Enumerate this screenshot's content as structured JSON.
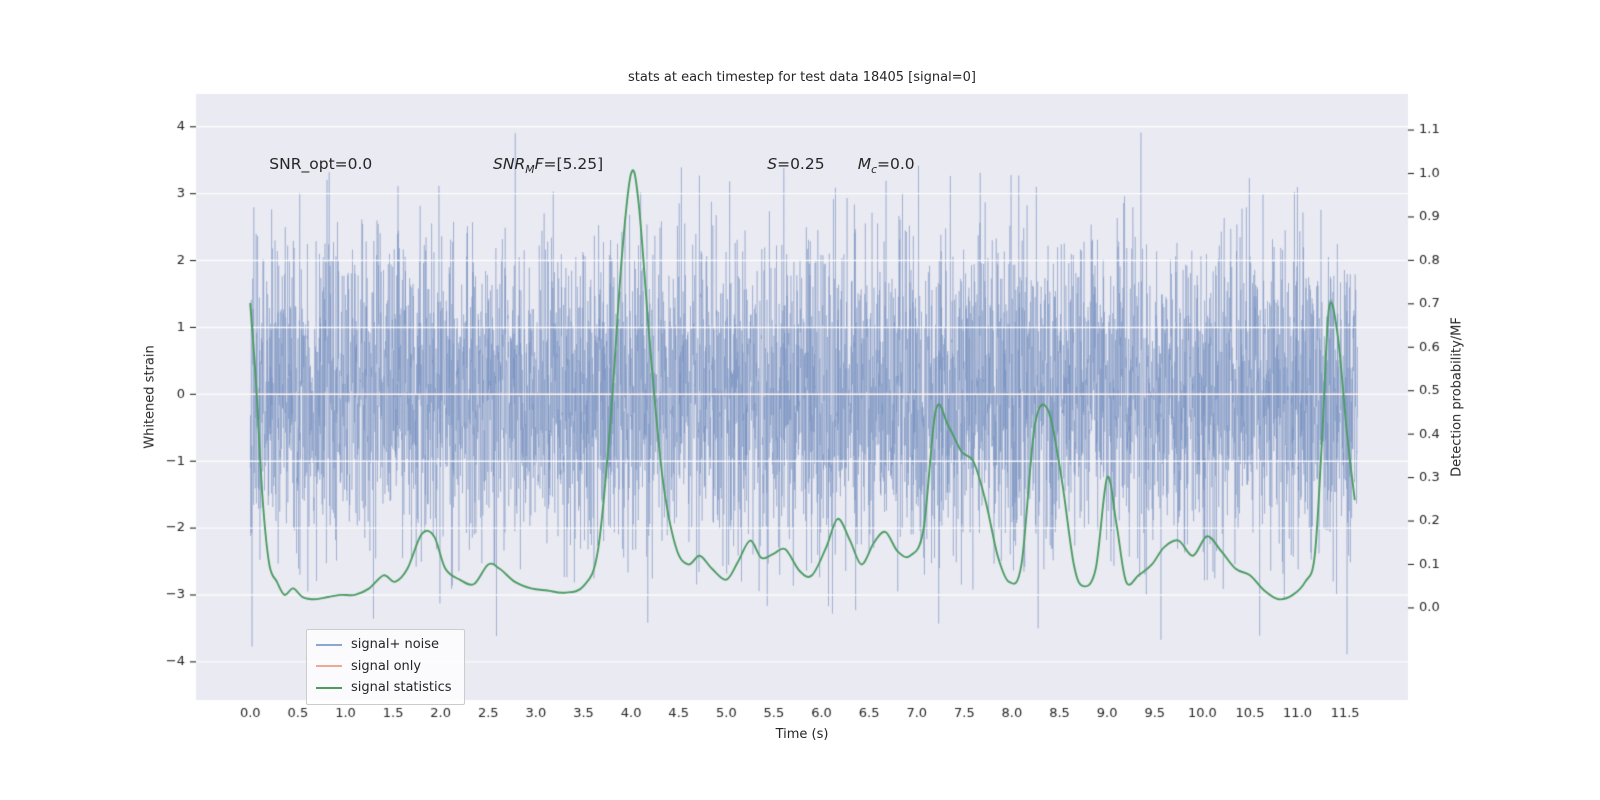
{
  "figure": {
    "background": "#ffffff"
  },
  "colors": {
    "axes_bg": "#eaeaf2",
    "grid": "#ffffff",
    "text": "#262626",
    "noise": "#6c8abd",
    "signal_only": "#edaa93",
    "signal_stats": "#4c9c64"
  },
  "legend": {
    "items": [
      {
        "label": "signal+ noise",
        "color": "#8ba6cf"
      },
      {
        "label": "signal only",
        "color": "#edaa93"
      },
      {
        "label": "signal statistics",
        "color": "#4c9c64"
      }
    ]
  },
  "chart_data": {
    "type": "line",
    "title": "stats at each timestep for test data 18405 [signal=0]",
    "xlabel": "Time (s)",
    "ylabel_left": "Whitened strain",
    "ylabel_right": "Detection probability/MF",
    "grid": "horizontal",
    "legend_position": "lower left",
    "xlim": [
      -0.57,
      12.16
    ],
    "ylim_left": [
      -4.57,
      4.49
    ],
    "ylim_right": [
      -0.212,
      1.183
    ],
    "x_ticks": {
      "values": [
        0,
        0.5,
        1,
        1.5,
        2,
        2.5,
        3,
        3.5,
        4,
        4.5,
        5,
        5.5,
        6,
        6.5,
        7,
        7.5,
        8,
        8.5,
        9,
        9.5,
        10,
        10.5,
        11,
        11.5
      ],
      "labels": [
        "0.0",
        "0.5",
        "1.0",
        "1.5",
        "2.0",
        "2.5",
        "3.0",
        "3.5",
        "4.0",
        "4.5",
        "5.0",
        "5.5",
        "6.0",
        "6.5",
        "7.0",
        "7.5",
        "8.0",
        "8.5",
        "9.0",
        "9.5",
        "10.0",
        "10.5",
        "11.0",
        "11.5"
      ]
    },
    "left_ticks": {
      "values": [
        -4,
        -3,
        -2,
        -1,
        0,
        1,
        2,
        3,
        4
      ],
      "labels": [
        "−4",
        "−3",
        "−2",
        "−1",
        "0",
        "1",
        "2",
        "3",
        "4"
      ]
    },
    "right_ticks": {
      "values": [
        0,
        0.1,
        0.2,
        0.3,
        0.4,
        0.5,
        0.6,
        0.7,
        0.8,
        0.9,
        1.0,
        1.1
      ],
      "labels": [
        "0.0",
        "0.1",
        "0.2",
        "0.3",
        "0.4",
        "0.5",
        "0.6",
        "0.7",
        "0.8",
        "0.9",
        "1.0",
        "1.1"
      ]
    },
    "annotations": [
      {
        "t": 0.2,
        "y": 3.32,
        "segments": [
          {
            "text": "SNR_opt=0.0"
          }
        ]
      },
      {
        "t": 2.55,
        "y": 3.32,
        "segments": [
          {
            "text": "SNR",
            "italic": true
          },
          {
            "text": "M",
            "italic": true,
            "sub": true
          },
          {
            "text": "F",
            "italic": true
          },
          {
            "text": "=[5.25]"
          }
        ]
      },
      {
        "t": 5.43,
        "y": 3.32,
        "segments": [
          {
            "text": "S",
            "italic": true
          },
          {
            "text": "=0.25"
          }
        ]
      },
      {
        "t": 6.38,
        "y": 3.32,
        "segments": [
          {
            "text": "M",
            "italic": true
          },
          {
            "text": "c",
            "italic": true,
            "sub": true
          },
          {
            "text": "=0.0"
          }
        ]
      }
    ],
    "series": [
      {
        "name": "signal+ noise",
        "kind": "noise",
        "axis": "left",
        "color": "#6c8abd",
        "alpha": 0.45,
        "t_start": 0.0,
        "t_end": 11.63,
        "mean": 0,
        "std": 1.15,
        "clip": [
          -4.35,
          4.15
        ],
        "samples": 5600,
        "seed": 42,
        "note": "dense zero-mean Gaussian whitened noise band, core ±2, spikes to ±4"
      },
      {
        "name": "signal only",
        "kind": "line",
        "axis": "left",
        "color": "#edaa93",
        "x": [
          0.0,
          11.63
        ],
        "y": [
          0.0,
          0.0
        ],
        "note": "signal=0, flat line hidden under noise"
      },
      {
        "name": "signal statistics",
        "kind": "smooth-line",
        "axis": "right",
        "color": "#4c9c64",
        "points": [
          [
            0.0,
            0.7
          ],
          [
            0.06,
            0.52
          ],
          [
            0.13,
            0.25
          ],
          [
            0.2,
            0.1
          ],
          [
            0.28,
            0.06
          ],
          [
            0.36,
            0.03
          ],
          [
            0.45,
            0.045
          ],
          [
            0.55,
            0.025
          ],
          [
            0.68,
            0.02
          ],
          [
            0.82,
            0.025
          ],
          [
            0.95,
            0.03
          ],
          [
            1.1,
            0.03
          ],
          [
            1.25,
            0.045
          ],
          [
            1.4,
            0.075
          ],
          [
            1.52,
            0.06
          ],
          [
            1.65,
            0.09
          ],
          [
            1.8,
            0.17
          ],
          [
            1.93,
            0.165
          ],
          [
            2.05,
            0.09
          ],
          [
            2.2,
            0.065
          ],
          [
            2.35,
            0.055
          ],
          [
            2.5,
            0.1
          ],
          [
            2.62,
            0.09
          ],
          [
            2.78,
            0.06
          ],
          [
            2.95,
            0.045
          ],
          [
            3.12,
            0.04
          ],
          [
            3.3,
            0.035
          ],
          [
            3.5,
            0.05
          ],
          [
            3.65,
            0.13
          ],
          [
            3.78,
            0.42
          ],
          [
            3.9,
            0.8
          ],
          [
            4.0,
            1.0
          ],
          [
            4.08,
            0.93
          ],
          [
            4.2,
            0.6
          ],
          [
            4.33,
            0.3
          ],
          [
            4.47,
            0.14
          ],
          [
            4.6,
            0.1
          ],
          [
            4.72,
            0.12
          ],
          [
            4.85,
            0.09
          ],
          [
            5.0,
            0.065
          ],
          [
            5.12,
            0.105
          ],
          [
            5.25,
            0.155
          ],
          [
            5.37,
            0.115
          ],
          [
            5.5,
            0.125
          ],
          [
            5.62,
            0.135
          ],
          [
            5.77,
            0.085
          ],
          [
            5.9,
            0.075
          ],
          [
            6.05,
            0.14
          ],
          [
            6.17,
            0.205
          ],
          [
            6.3,
            0.155
          ],
          [
            6.42,
            0.1
          ],
          [
            6.55,
            0.15
          ],
          [
            6.67,
            0.175
          ],
          [
            6.8,
            0.13
          ],
          [
            6.93,
            0.12
          ],
          [
            7.07,
            0.18
          ],
          [
            7.2,
            0.455
          ],
          [
            7.33,
            0.42
          ],
          [
            7.47,
            0.36
          ],
          [
            7.6,
            0.335
          ],
          [
            7.73,
            0.24
          ],
          [
            7.85,
            0.12
          ],
          [
            7.97,
            0.06
          ],
          [
            8.1,
            0.1
          ],
          [
            8.24,
            0.42
          ],
          [
            8.38,
            0.455
          ],
          [
            8.52,
            0.3
          ],
          [
            8.65,
            0.1
          ],
          [
            8.75,
            0.05
          ],
          [
            8.88,
            0.09
          ],
          [
            9.0,
            0.3
          ],
          [
            9.1,
            0.19
          ],
          [
            9.2,
            0.06
          ],
          [
            9.33,
            0.075
          ],
          [
            9.47,
            0.1
          ],
          [
            9.6,
            0.14
          ],
          [
            9.75,
            0.155
          ],
          [
            9.9,
            0.12
          ],
          [
            10.05,
            0.165
          ],
          [
            10.2,
            0.13
          ],
          [
            10.35,
            0.09
          ],
          [
            10.5,
            0.075
          ],
          [
            10.65,
            0.04
          ],
          [
            10.8,
            0.02
          ],
          [
            10.95,
            0.03
          ],
          [
            11.08,
            0.06
          ],
          [
            11.18,
            0.12
          ],
          [
            11.26,
            0.4
          ],
          [
            11.33,
            0.69
          ],
          [
            11.42,
            0.63
          ],
          [
            11.52,
            0.4
          ],
          [
            11.6,
            0.25
          ]
        ]
      }
    ]
  }
}
